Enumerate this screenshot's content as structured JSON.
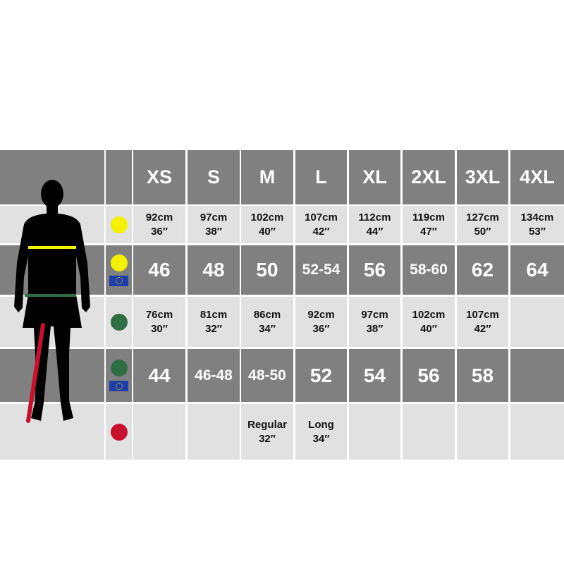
{
  "sizes": [
    "XS",
    "S",
    "M",
    "L",
    "XL",
    "2XL",
    "3XL",
    "4XL"
  ],
  "colors": {
    "chest": "#f5f000",
    "waist": "#2f6e45",
    "leg": "#c8102e",
    "dark_row": "#808080",
    "light_row": "#e1e1e1",
    "eu_flag": "#1f3fa6"
  },
  "rows": [
    {
      "marker": "chest",
      "eu": false,
      "style": "small",
      "cells": [
        [
          "92cm",
          "36″"
        ],
        [
          "97cm",
          "38″"
        ],
        [
          "102cm",
          "40″"
        ],
        [
          "107cm",
          "42″"
        ],
        [
          "112cm",
          "44″"
        ],
        [
          "119cm",
          "47″"
        ],
        [
          "127cm",
          "50″"
        ],
        [
          "134cm",
          "53″"
        ]
      ]
    },
    {
      "marker": "chest",
      "eu": true,
      "style": "big",
      "cells": [
        "46",
        "48",
        "50",
        "52-54",
        "56",
        "58-60",
        "62",
        "64"
      ]
    },
    {
      "marker": "waist",
      "eu": false,
      "style": "small",
      "cells": [
        [
          "76cm",
          "30″"
        ],
        [
          "81cm",
          "32″"
        ],
        [
          "86cm",
          "34″"
        ],
        [
          "92cm",
          "36″"
        ],
        [
          "97cm",
          "38″"
        ],
        [
          "102cm",
          "40″"
        ],
        [
          "107cm",
          "42″"
        ],
        [
          "",
          ""
        ]
      ]
    },
    {
      "marker": "waist",
      "eu": true,
      "style": "big",
      "cells": [
        "44",
        "46-48",
        "48-50",
        "52",
        "54",
        "56",
        "58",
        ""
      ]
    },
    {
      "marker": "leg",
      "eu": false,
      "style": "small",
      "cells": [
        [
          "",
          ""
        ],
        [
          "",
          ""
        ],
        [
          "Regular",
          "32″"
        ],
        [
          "Long",
          "34″"
        ],
        [
          "",
          ""
        ],
        [
          "",
          ""
        ],
        [
          "",
          ""
        ],
        [
          "",
          ""
        ]
      ]
    }
  ]
}
